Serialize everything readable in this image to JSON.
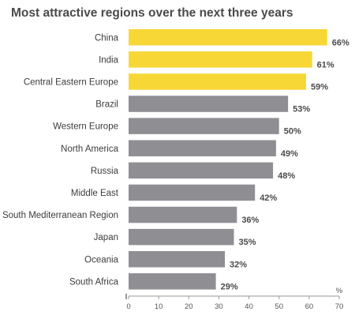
{
  "chart_data": {
    "type": "bar",
    "orientation": "horizontal",
    "title": "Most attractive regions over the next three years",
    "categories": [
      "China",
      "India",
      "Central Eastern Europe",
      "Brazil",
      "Western Europe",
      "North America",
      "Russia",
      "Middle East",
      "South Mediterranean Region",
      "Japan",
      "Oceania",
      "South Africa"
    ],
    "values": [
      66,
      61,
      59,
      53,
      50,
      49,
      48,
      42,
      36,
      35,
      32,
      29
    ],
    "value_labels": [
      "66%",
      "61%",
      "59%",
      "53%",
      "50%",
      "49%",
      "48%",
      "42%",
      "36%",
      "35%",
      "32%",
      "29%"
    ],
    "highlighted": [
      true,
      true,
      true,
      false,
      false,
      false,
      false,
      false,
      false,
      false,
      false,
      false
    ],
    "xlim": [
      0,
      70
    ],
    "xticks": [
      "0",
      "10",
      "20",
      "30",
      "40",
      "50",
      "60",
      "70"
    ],
    "x_unit": "%",
    "grid": false,
    "colors": {
      "highlight": "#f7d735",
      "default": "#8e8e93",
      "axis": "#9a9a9a"
    }
  }
}
